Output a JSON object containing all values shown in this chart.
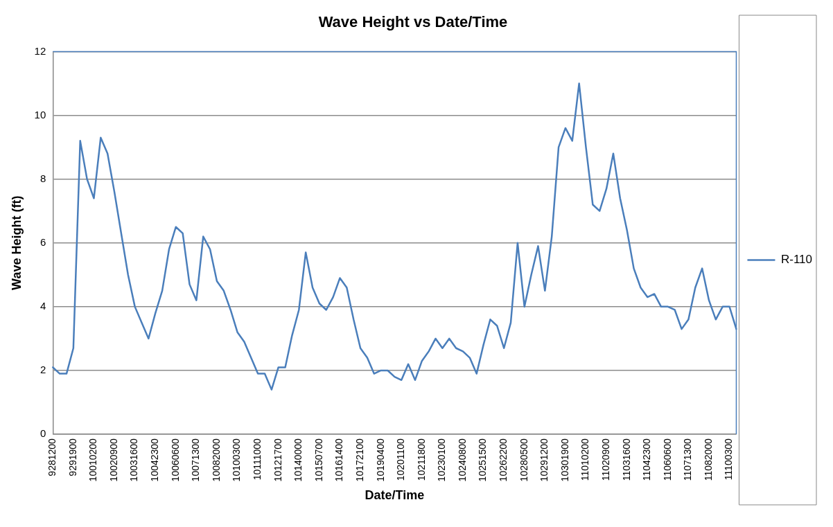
{
  "chart_data": {
    "type": "line",
    "title": "Wave Height vs Date/Time",
    "xlabel": "Date/Time",
    "ylabel": "Wave Height (ft)",
    "categories": [
      "9281200",
      null,
      null,
      "9291900",
      null,
      null,
      "10010200",
      null,
      null,
      "10020900",
      null,
      null,
      "10031600",
      null,
      null,
      "10042300",
      null,
      null,
      "10060600",
      null,
      null,
      "10071300",
      null,
      null,
      "10082000",
      null,
      null,
      "10100300",
      null,
      null,
      "10111000",
      null,
      null,
      "10121700",
      null,
      null,
      "10140000",
      null,
      null,
      "10150700",
      null,
      null,
      "10161400",
      null,
      null,
      "10172100",
      null,
      null,
      "10190400",
      null,
      null,
      "10201100",
      null,
      null,
      "10211800",
      null,
      null,
      "10230100",
      null,
      null,
      "10240800",
      null,
      null,
      "10251500",
      null,
      null,
      "10262200",
      null,
      null,
      "10280500",
      null,
      null,
      "10291200",
      null,
      null,
      "10301900",
      null,
      null,
      "11010200",
      null,
      null,
      "11020900",
      null,
      null,
      "11031600",
      null,
      null,
      "11042300",
      null,
      null,
      "11060600",
      null,
      null,
      "11071300",
      null,
      null,
      "11082000",
      null,
      null,
      "11100300",
      null
    ],
    "series": [
      {
        "name": "R-110",
        "color": "#4a7ebb",
        "values": [
          2.1,
          1.9,
          1.9,
          2.7,
          9.2,
          8.0,
          7.4,
          9.3,
          8.8,
          7.6,
          6.3,
          5.0,
          4.0,
          3.5,
          3.0,
          3.8,
          4.5,
          5.8,
          6.5,
          6.3,
          4.7,
          4.2,
          6.2,
          5.8,
          4.8,
          4.5,
          3.9,
          3.2,
          2.9,
          2.4,
          1.9,
          1.9,
          1.4,
          2.1,
          2.1,
          3.1,
          3.9,
          5.7,
          4.6,
          4.1,
          3.9,
          4.3,
          4.9,
          4.6,
          3.6,
          2.7,
          2.4,
          1.9,
          2.0,
          2.0,
          1.8,
          1.7,
          2.2,
          1.7,
          2.3,
          2.6,
          3.0,
          2.7,
          3.0,
          2.7,
          2.6,
          2.4,
          1.9,
          2.8,
          3.6,
          3.4,
          2.7,
          3.5,
          6.0,
          4.0,
          5.0,
          5.9,
          4.5,
          6.2,
          9.0,
          9.6,
          9.2,
          11.0,
          9.0,
          7.2,
          7.0,
          7.7,
          8.8,
          7.4,
          6.4,
          5.2,
          4.6,
          4.3,
          4.4,
          4.0,
          4.0,
          3.9,
          3.3,
          3.6,
          4.6,
          5.2,
          4.2,
          3.6,
          4.0,
          4.0,
          3.3
        ]
      }
    ],
    "ylim": [
      0,
      12
    ],
    "yticks": [
      0,
      2,
      4,
      6,
      8,
      10,
      12
    ],
    "grid": "y",
    "legend": "right",
    "marker": "none",
    "line_style": "solid"
  }
}
